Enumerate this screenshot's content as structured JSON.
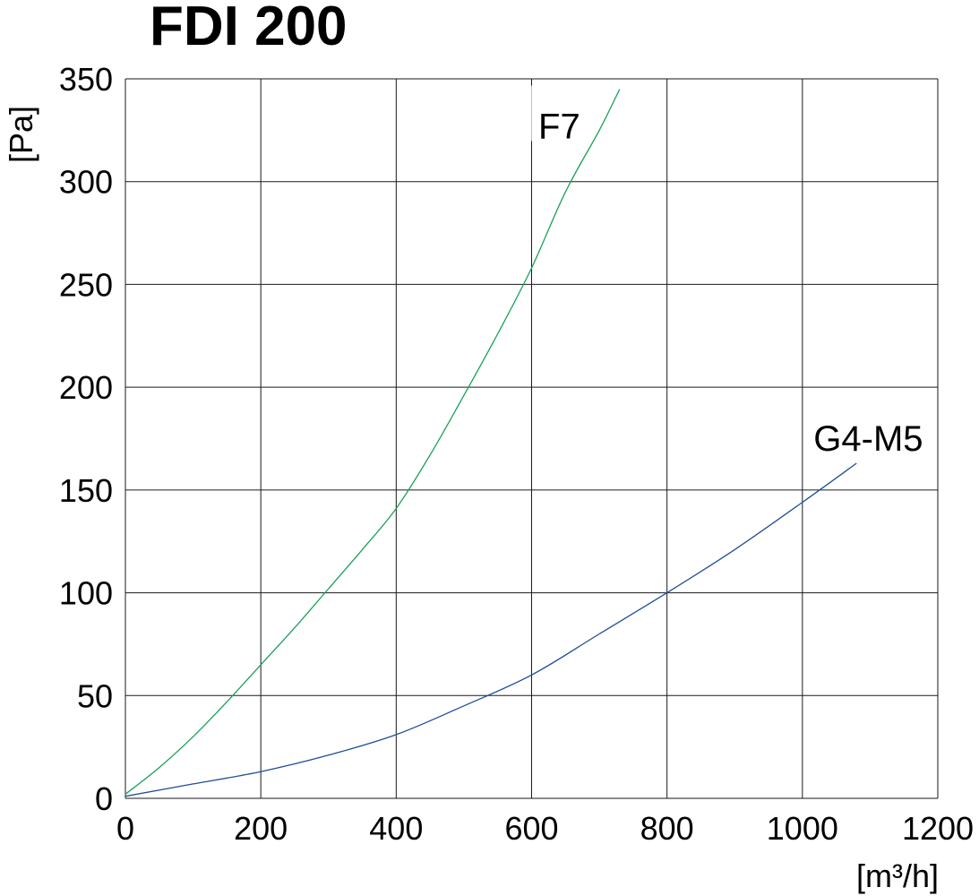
{
  "chart_data": {
    "type": "line",
    "title": "FDI 200",
    "xlabel": "[m³/h]",
    "ylabel": "[Pa]",
    "xlim": [
      0,
      1200
    ],
    "ylim": [
      0,
      350
    ],
    "x_ticks": [
      0,
      200,
      400,
      600,
      800,
      1000,
      1200
    ],
    "y_ticks": [
      0,
      50,
      100,
      150,
      200,
      250,
      300,
      350
    ],
    "grid": true,
    "series": [
      {
        "name": "F7",
        "color": "#1aa05a",
        "x": [
          0,
          50,
          100,
          150,
          200,
          250,
          300,
          350,
          400,
          450,
          500,
          550,
          600,
          650,
          700,
          730
        ],
        "y": [
          2,
          15,
          30,
          47,
          65,
          83,
          102,
          121,
          141,
          167,
          196,
          226,
          258,
          295,
          325,
          345
        ]
      },
      {
        "name": "G4-M5",
        "color": "#1f4e96",
        "x": [
          0,
          100,
          200,
          300,
          400,
          500,
          600,
          700,
          800,
          900,
          1000,
          1080
        ],
        "y": [
          1,
          7,
          13,
          21,
          31,
          45,
          60,
          80,
          100,
          121,
          144,
          163
        ]
      }
    ]
  }
}
